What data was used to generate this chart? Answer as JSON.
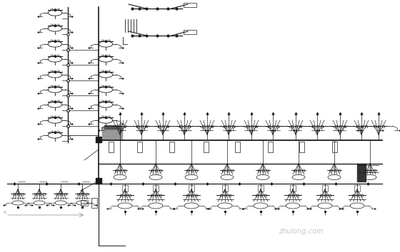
{
  "bg_color": "#ffffff",
  "lc": "#1a1a1a",
  "gc": "#888888",
  "fig_width": 5.6,
  "fig_height": 3.54,
  "dpi": 100,
  "watermark_text": "zhulong.com",
  "watermark_color": "#b0b0b0"
}
